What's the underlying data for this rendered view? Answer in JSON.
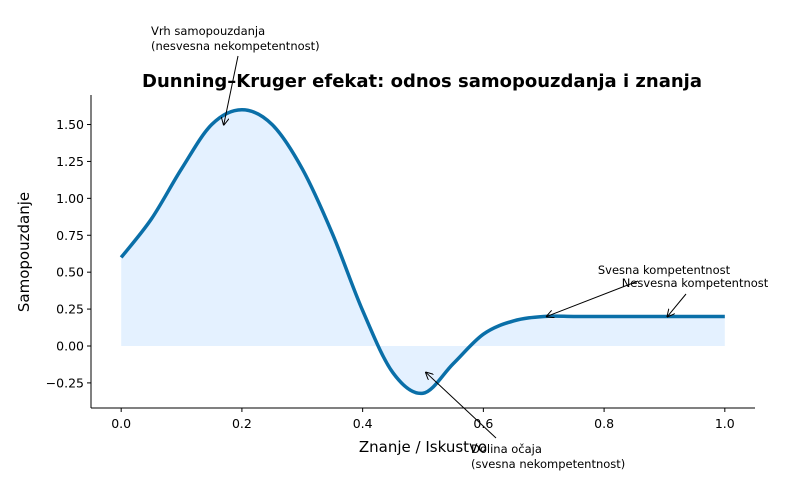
{
  "chart_data": {
    "type": "line",
    "title": "Dunning–Kruger efekat: odnos samopouzdanja i znanja",
    "xlabel": "Znanje / Iskustvo",
    "ylabel": "Samopouzdanje",
    "xlim": [
      -0.05,
      1.05
    ],
    "ylim": [
      -0.42,
      1.7
    ],
    "x_ticks": [
      0.0,
      0.2,
      0.4,
      0.6,
      0.8,
      1.0
    ],
    "x_tick_labels": [
      "0.0",
      "0.2",
      "0.4",
      "0.6",
      "0.8",
      "1.0"
    ],
    "y_ticks": [
      -0.25,
      0.0,
      0.25,
      0.5,
      0.75,
      1.0,
      1.25,
      1.5
    ],
    "y_tick_labels": [
      "−0.25",
      "0.00",
      "0.25",
      "0.50",
      "0.75",
      "1.00",
      "1.25",
      "1.50"
    ],
    "grid": false,
    "line_color": "#0a6fa8",
    "fill_color": "#ddeeff",
    "series": [
      {
        "x": [
          0.0,
          0.05,
          0.1,
          0.15,
          0.2,
          0.25,
          0.3,
          0.35,
          0.4,
          0.45,
          0.5,
          0.55,
          0.6,
          0.65,
          0.7,
          0.75,
          0.8,
          0.85,
          0.9,
          0.95,
          1.0
        ],
        "y": [
          0.6,
          0.86,
          1.2,
          1.5,
          1.6,
          1.5,
          1.2,
          0.76,
          0.24,
          -0.18,
          -0.32,
          -0.12,
          0.08,
          0.17,
          0.2,
          0.2,
          0.2,
          0.2,
          0.2,
          0.2,
          0.2
        ]
      }
    ],
    "annotations": [
      {
        "id": "peak",
        "lines": [
          "Vrh samopouzdanja",
          "(nesvesna nekompetentnost)"
        ],
        "point": [
          0.17,
          1.5
        ]
      },
      {
        "id": "valley",
        "lines": [
          "Dolina očaja",
          "(svesna nekompetentnost)"
        ],
        "point": [
          0.505,
          -0.18
        ]
      },
      {
        "id": "conscious",
        "lines": [
          "Svesna kompetentnost"
        ],
        "point": [
          0.705,
          0.2
        ]
      },
      {
        "id": "unconscious",
        "lines": [
          "Nesvesna kompetentnost"
        ],
        "point": [
          0.905,
          0.2
        ]
      }
    ]
  }
}
